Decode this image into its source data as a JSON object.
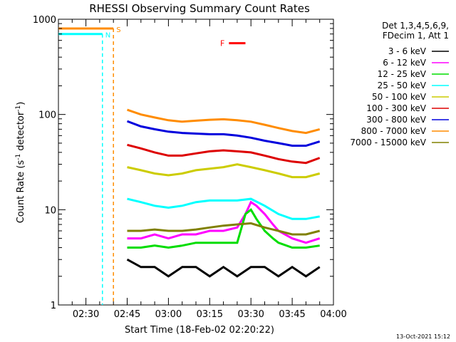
{
  "chart_data": {
    "type": "line",
    "title": "RHESSI Observing Summary Count Rates",
    "xlabel": "Start Time (18-Feb-02 02:20:22)",
    "ylabel_main": "Count Rate (s",
    "ylabel_sup1": "-1",
    "ylabel_mid": " detector",
    "ylabel_sup2": "-1",
    "ylabel_end": ")",
    "y_scale": "log",
    "ylim": [
      1,
      1000
    ],
    "xlim_minutes": [
      0,
      100
    ],
    "x_ticks": [
      {
        "label": "02:30",
        "minute": 10
      },
      {
        "label": "02:45",
        "minute": 25
      },
      {
        "label": "03:00",
        "minute": 40
      },
      {
        "label": "03:15",
        "minute": 55
      },
      {
        "label": "03:30",
        "minute": 70
      },
      {
        "label": "03:45",
        "minute": 85
      },
      {
        "label": "04:00",
        "minute": 100
      }
    ],
    "y_ticks": [
      {
        "label": "1",
        "value": 1
      },
      {
        "label": "10",
        "value": 10
      },
      {
        "label": "100",
        "value": 100
      },
      {
        "label": "1000",
        "value": 1000
      }
    ],
    "legend_header": [
      "Det 1,3,4,5,6,9,",
      "FDecim 1, Att 1"
    ],
    "legend_position": "right",
    "series": [
      {
        "name": "3 - 6 keV",
        "color": "#000000",
        "points": [
          [
            25,
            3
          ],
          [
            30,
            2.5
          ],
          [
            35,
            2.5
          ],
          [
            40,
            2
          ],
          [
            45,
            2.5
          ],
          [
            50,
            2.5
          ],
          [
            55,
            2
          ],
          [
            60,
            2.5
          ],
          [
            65,
            2
          ],
          [
            70,
            2.5
          ],
          [
            75,
            2.5
          ],
          [
            80,
            2
          ],
          [
            85,
            2.5
          ],
          [
            90,
            2
          ],
          [
            95,
            2.5
          ]
        ]
      },
      {
        "name": "6 - 12 keV",
        "color": "#ff00ff",
        "points": [
          [
            25,
            5
          ],
          [
            30,
            5
          ],
          [
            35,
            5.5
          ],
          [
            40,
            5
          ],
          [
            45,
            5.5
          ],
          [
            50,
            5.5
          ],
          [
            55,
            6
          ],
          [
            60,
            6
          ],
          [
            65,
            6.5
          ],
          [
            68,
            9
          ],
          [
            70,
            12
          ],
          [
            72,
            11
          ],
          [
            75,
            9
          ],
          [
            78,
            7
          ],
          [
            80,
            6
          ],
          [
            85,
            5
          ],
          [
            90,
            4.5
          ],
          [
            95,
            5
          ]
        ]
      },
      {
        "name": "12 - 25 keV",
        "color": "#00dd00",
        "points": [
          [
            25,
            4
          ],
          [
            30,
            4
          ],
          [
            35,
            4.2
          ],
          [
            40,
            4
          ],
          [
            45,
            4.2
          ],
          [
            50,
            4.5
          ],
          [
            55,
            4.5
          ],
          [
            60,
            4.5
          ],
          [
            65,
            4.5
          ],
          [
            68,
            9
          ],
          [
            70,
            10
          ],
          [
            72,
            8
          ],
          [
            75,
            6
          ],
          [
            78,
            5
          ],
          [
            80,
            4.5
          ],
          [
            85,
            4
          ],
          [
            90,
            4
          ],
          [
            95,
            4.2
          ]
        ]
      },
      {
        "name": "25 - 50 keV",
        "color": "#00ffff",
        "points": [
          [
            25,
            13
          ],
          [
            30,
            12
          ],
          [
            35,
            11
          ],
          [
            40,
            10.5
          ],
          [
            45,
            11
          ],
          [
            50,
            12
          ],
          [
            55,
            12.5
          ],
          [
            60,
            12.5
          ],
          [
            65,
            12.5
          ],
          [
            70,
            13
          ],
          [
            75,
            11
          ],
          [
            80,
            9
          ],
          [
            85,
            8
          ],
          [
            90,
            8
          ],
          [
            95,
            8.5
          ]
        ]
      },
      {
        "name": "50 - 100 keV",
        "color": "#cccc00",
        "points": [
          [
            25,
            28
          ],
          [
            30,
            26
          ],
          [
            35,
            24
          ],
          [
            40,
            23
          ],
          [
            45,
            24
          ],
          [
            50,
            26
          ],
          [
            55,
            27
          ],
          [
            60,
            28
          ],
          [
            65,
            30
          ],
          [
            70,
            28
          ],
          [
            75,
            26
          ],
          [
            80,
            24
          ],
          [
            85,
            22
          ],
          [
            90,
            22
          ],
          [
            95,
            24
          ]
        ]
      },
      {
        "name": "100 - 300 keV",
        "color": "#dd0000",
        "points": [
          [
            25,
            48
          ],
          [
            30,
            44
          ],
          [
            35,
            40
          ],
          [
            40,
            37
          ],
          [
            45,
            37
          ],
          [
            50,
            39
          ],
          [
            55,
            41
          ],
          [
            60,
            42
          ],
          [
            65,
            41
          ],
          [
            70,
            40
          ],
          [
            75,
            37
          ],
          [
            80,
            34
          ],
          [
            85,
            32
          ],
          [
            90,
            31
          ],
          [
            95,
            35
          ]
        ]
      },
      {
        "name": "300 - 800 keV",
        "color": "#0000dd",
        "points": [
          [
            25,
            85
          ],
          [
            30,
            75
          ],
          [
            35,
            70
          ],
          [
            40,
            66
          ],
          [
            45,
            64
          ],
          [
            50,
            63
          ],
          [
            55,
            62
          ],
          [
            60,
            62
          ],
          [
            65,
            60
          ],
          [
            70,
            57
          ],
          [
            75,
            53
          ],
          [
            80,
            50
          ],
          [
            85,
            47
          ],
          [
            90,
            47
          ],
          [
            95,
            52
          ]
        ]
      },
      {
        "name": "800 - 7000 keV",
        "color": "#ff8c00",
        "points": [
          [
            25,
            112
          ],
          [
            30,
            100
          ],
          [
            35,
            93
          ],
          [
            40,
            87
          ],
          [
            45,
            84
          ],
          [
            50,
            86
          ],
          [
            55,
            88
          ],
          [
            60,
            89
          ],
          [
            65,
            87
          ],
          [
            70,
            84
          ],
          [
            75,
            78
          ],
          [
            80,
            72
          ],
          [
            85,
            67
          ],
          [
            90,
            64
          ],
          [
            95,
            70
          ]
        ]
      },
      {
        "name": "7000 - 15000 keV",
        "color": "#808000",
        "points": [
          [
            25,
            6
          ],
          [
            30,
            6
          ],
          [
            35,
            6.2
          ],
          [
            40,
            6
          ],
          [
            45,
            6
          ],
          [
            50,
            6.2
          ],
          [
            55,
            6.5
          ],
          [
            60,
            6.8
          ],
          [
            65,
            7
          ],
          [
            70,
            7.2
          ],
          [
            75,
            6.5
          ],
          [
            80,
            6
          ],
          [
            85,
            5.5
          ],
          [
            90,
            5.5
          ],
          [
            95,
            6
          ]
        ]
      }
    ],
    "markers": [
      {
        "label": "N",
        "color": "#00ffff",
        "minute": 16,
        "level": 700
      },
      {
        "label": "S",
        "color": "#ff8c00",
        "minute": 20,
        "level": 800
      },
      {
        "label": "F",
        "color": "#ff0000",
        "minute_range": [
          62,
          68
        ],
        "level": 560
      }
    ],
    "footer_date": "13-Oct-2021 15:12"
  }
}
